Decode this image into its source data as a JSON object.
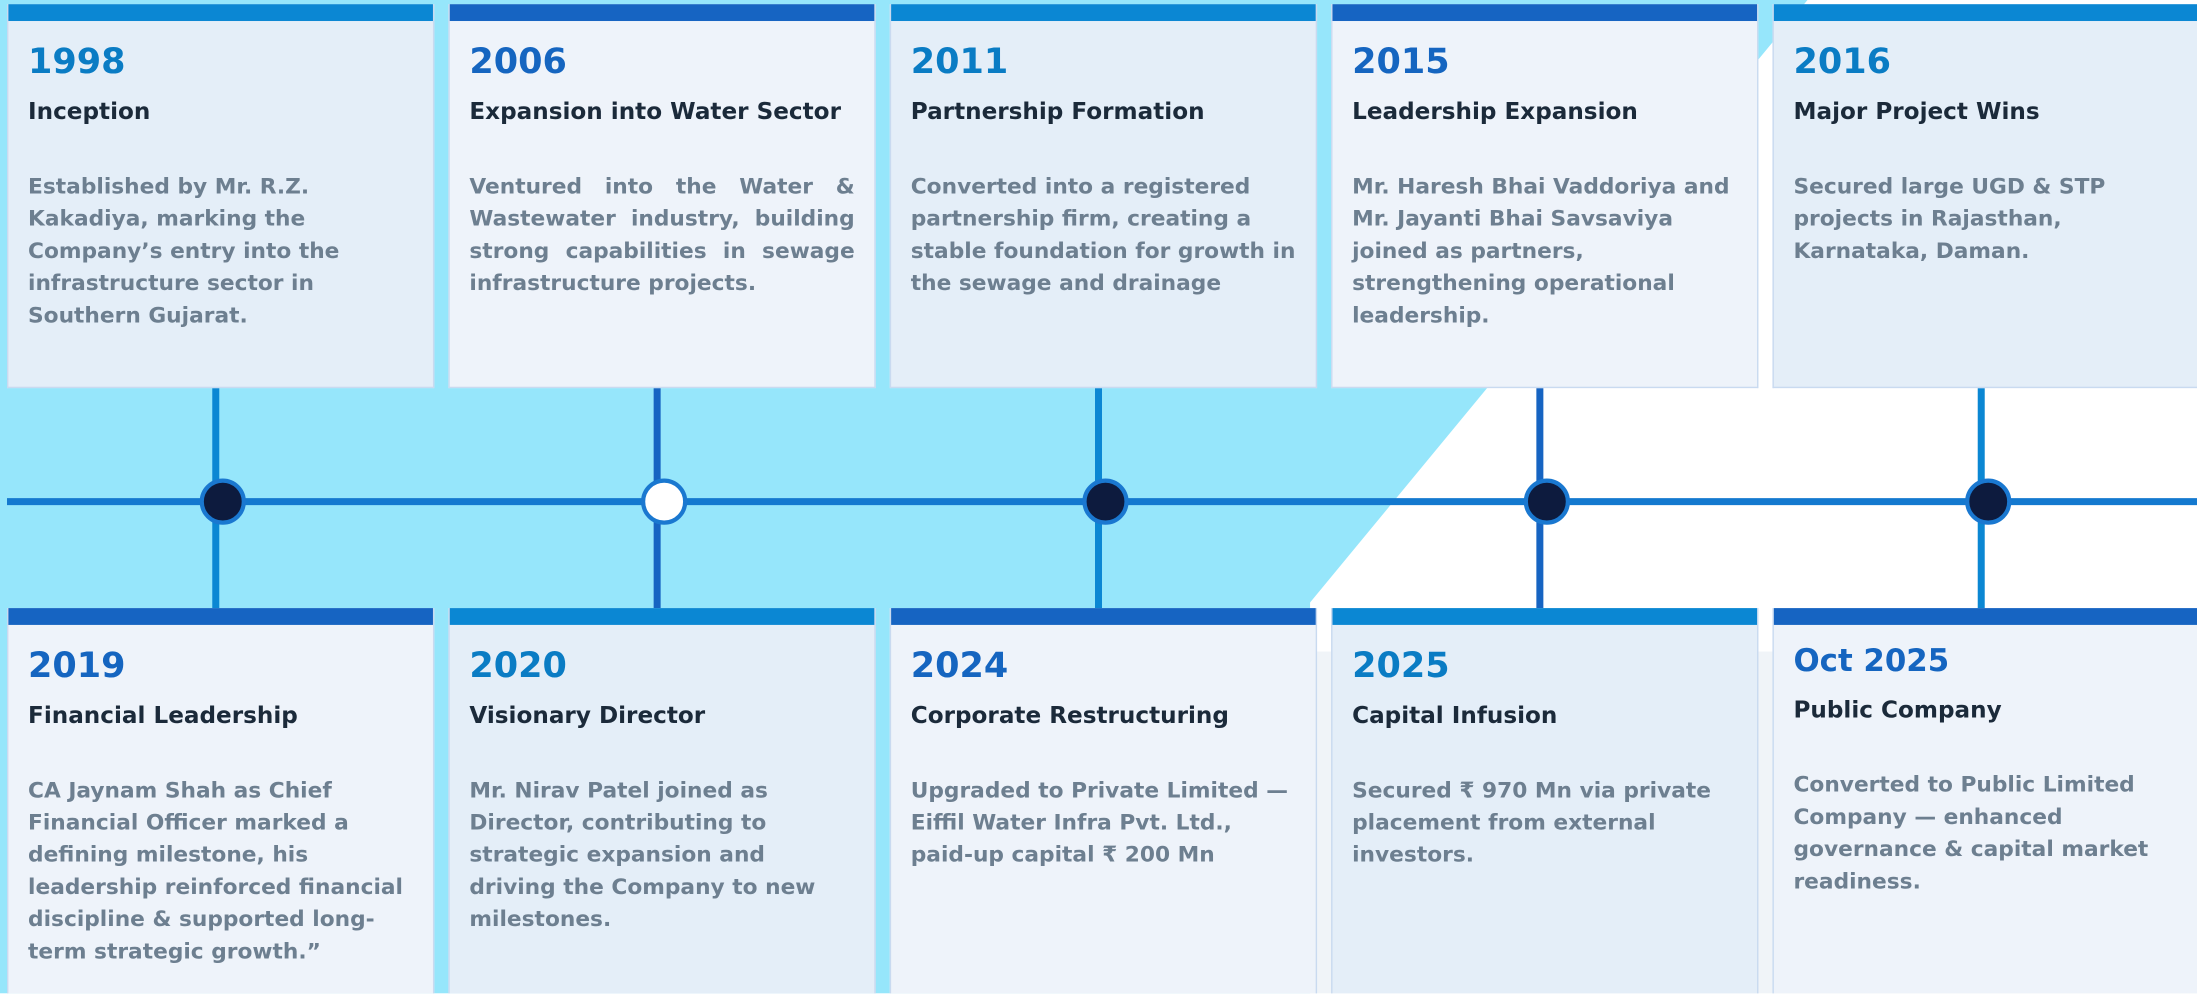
{
  "top": [
    {
      "year": "1998",
      "title": "Inception",
      "text": "Established by Mr. R.Z. Kakadiya, marking the Company’s entry into the infrastructure sector in Southern Gujarat."
    },
    {
      "year": "2006",
      "title": "Expansion into Water Sector",
      "text": "Ventured into the Water & Wastewater industry, building strong capabilities in sewage infrastructure projects."
    },
    {
      "year": "2011",
      "title": "Partnership Formation",
      "text": "Converted into a registered partnership firm, creating a stable foundation for growth in the sewage and drainage"
    },
    {
      "year": "2015",
      "title": "Leadership Expansion",
      "text": "Mr. Haresh Bhai Vaddoriya and Mr. Jayanti Bhai Savsaviya joined as partners, strengthening operational leadership."
    },
    {
      "year": "2016",
      "title": "Major Project Wins",
      "text": "Secured large UGD & STP projects in Rajasthan, Karnataka, Daman."
    }
  ],
  "bottom": [
    {
      "year": "2019",
      "title": "Financial Leadership",
      "text": "CA Jaynam Shah as Chief Financial Officer marked a defining milestone, his leadership reinforced financial discipline & supported long-term strategic growth.”"
    },
    {
      "year": "2020",
      "title": "Visionary Director",
      "text": "Mr. Nirav Patel joined as Director, contributing to strategic expansion and driving the Company to new milestones."
    },
    {
      "year": "2024",
      "title": "Corporate Restructuring",
      "text": "Upgraded to Private Limited — Eiffil Water Infra Pvt. Ltd., paid-up capital ₹ 200 Mn"
    },
    {
      "year": "2025",
      "title": "Capital Infusion",
      "text": "Secured ₹ 970 Mn via private placement from external investors."
    },
    {
      "year": "Oct 2025",
      "title": "Public Company",
      "text": "Converted to Public Limited Company — enhanced governance & capital market readiness."
    }
  ]
}
